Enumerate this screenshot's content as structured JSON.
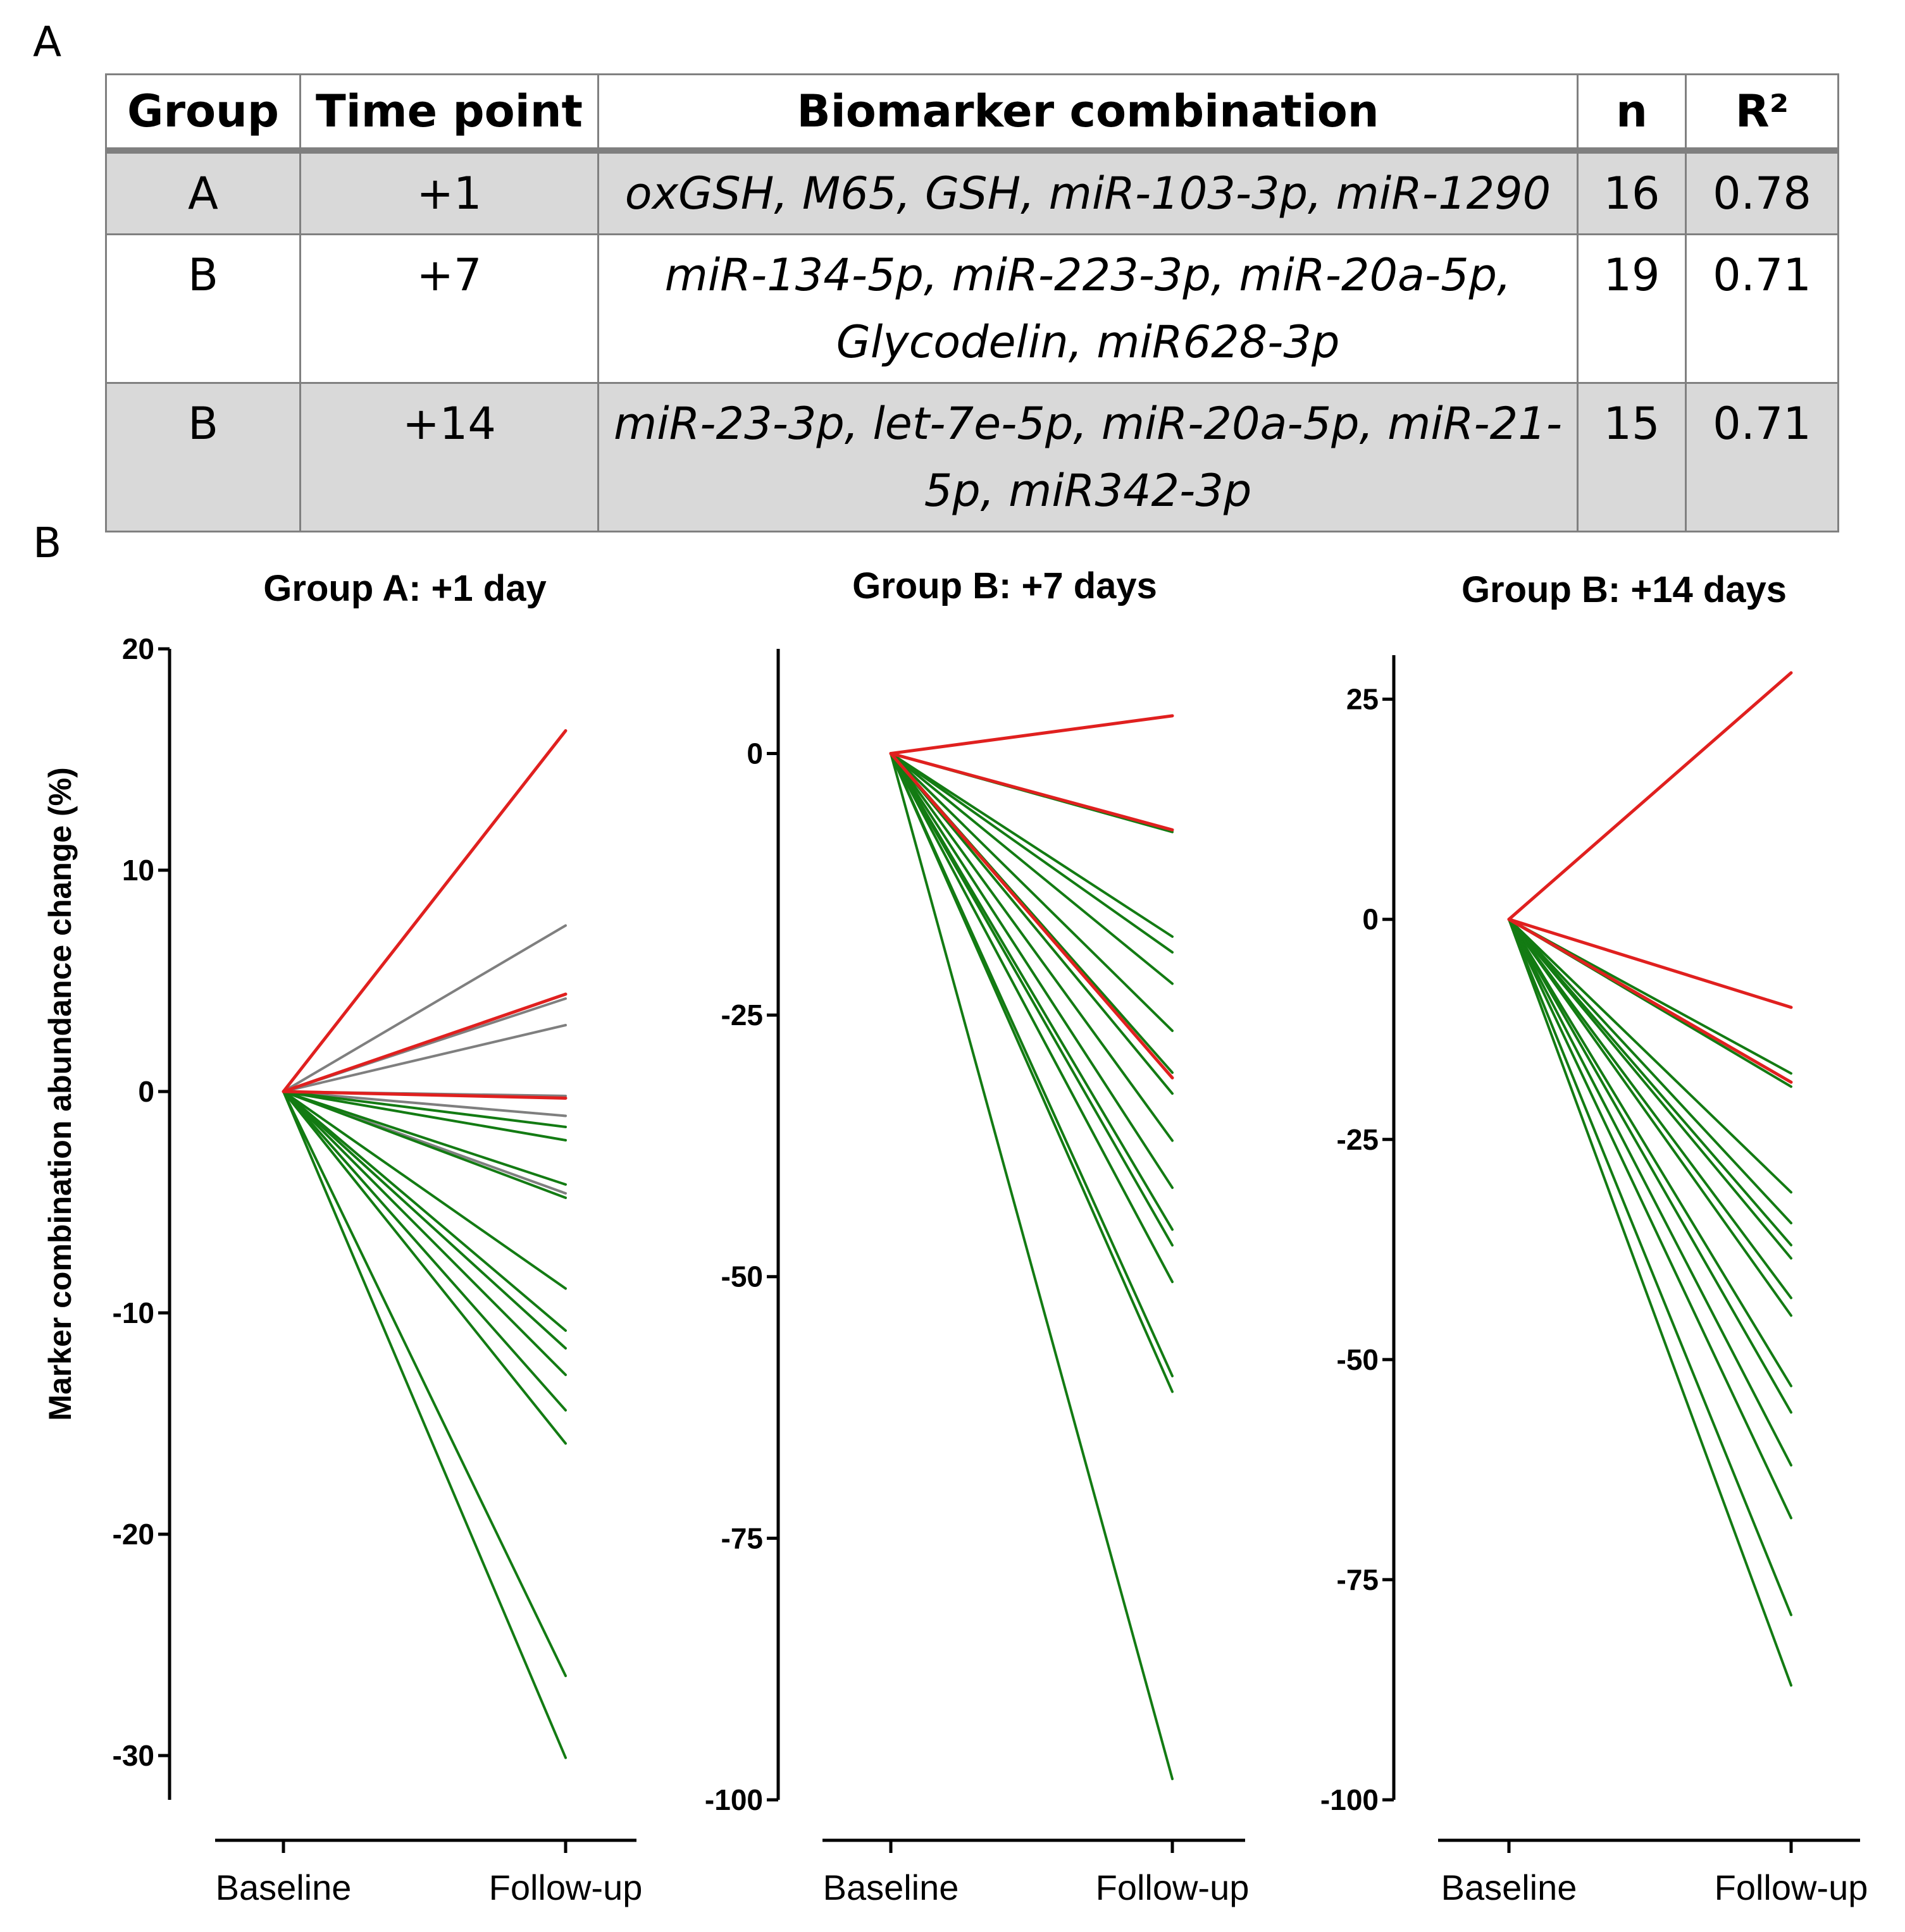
{
  "panel_labels": {
    "a": "A",
    "b": "B"
  },
  "table": {
    "headers": [
      "Group",
      "Time point",
      "Biomarker combination",
      "n",
      "R²"
    ],
    "rows": [
      {
        "group": "A",
        "time_point": "+1",
        "combination": "oxGSH, M65, GSH, miR-103-3p, miR-1290",
        "n": "16",
        "r2": "0.78",
        "shaded": true
      },
      {
        "group": "B",
        "time_point": "+7",
        "combination": "miR-134-5p, miR-223-3p, miR-20a-5p, Glycodelin, miR628-3p",
        "n": "19",
        "r2": "0.71",
        "shaded": false
      },
      {
        "group": "B",
        "time_point": "+14",
        "combination": "miR-23-3p, let-7e-5p, miR-20a-5p, miR-21-5p, miR342-3p",
        "n": "15",
        "r2": "0.71",
        "shaded": true
      }
    ]
  },
  "colors": {
    "red": "#e0201f",
    "green": "#137b13",
    "gray": "#7f7f7f",
    "shade": "#d9d9d9"
  },
  "chart_data": [
    {
      "type": "line",
      "title": "Group A: +1 day",
      "ylabel": "Marker combination abundance change (%)",
      "xlabel": "",
      "categories": [
        "Baseline",
        "Follow-up"
      ],
      "ylim": [
        -32,
        20
      ],
      "yticks": [
        20,
        10,
        0,
        -10,
        -20,
        -30
      ],
      "tick_labels": [
        "20",
        "10",
        "0",
        "-10",
        "-20",
        "-30"
      ],
      "series": [
        {
          "color": "red",
          "values": [
            0,
            16.3
          ]
        },
        {
          "color": "red",
          "values": [
            0,
            4.4
          ]
        },
        {
          "color": "red",
          "values": [
            0,
            -0.3
          ]
        },
        {
          "color": "gray",
          "values": [
            0,
            7.5
          ]
        },
        {
          "color": "gray",
          "values": [
            0,
            4.2
          ]
        },
        {
          "color": "gray",
          "values": [
            0,
            3.0
          ]
        },
        {
          "color": "gray",
          "values": [
            0,
            -0.2
          ]
        },
        {
          "color": "gray",
          "values": [
            0,
            -1.1
          ]
        },
        {
          "color": "gray",
          "values": [
            0,
            -4.6
          ]
        },
        {
          "color": "green",
          "values": [
            0,
            -1.6
          ]
        },
        {
          "color": "green",
          "values": [
            0,
            -2.2
          ]
        },
        {
          "color": "green",
          "values": [
            0,
            -4.2
          ]
        },
        {
          "color": "green",
          "values": [
            0,
            -4.8
          ]
        },
        {
          "color": "green",
          "values": [
            0,
            -8.9
          ]
        },
        {
          "color": "green",
          "values": [
            0,
            -10.8
          ]
        },
        {
          "color": "green",
          "values": [
            0,
            -11.6
          ]
        },
        {
          "color": "green",
          "values": [
            0,
            -12.8
          ]
        },
        {
          "color": "green",
          "values": [
            0,
            -14.4
          ]
        },
        {
          "color": "green",
          "values": [
            0,
            -15.9
          ]
        },
        {
          "color": "green",
          "values": [
            0,
            -26.4
          ]
        },
        {
          "color": "green",
          "values": [
            0,
            -30.1
          ]
        }
      ]
    },
    {
      "type": "line",
      "title": "Group B: +7 days",
      "ylabel": "",
      "xlabel": "",
      "categories": [
        "Baseline",
        "Follow-up"
      ],
      "ylim": [
        -100,
        10
      ],
      "yticks": [
        0,
        -25,
        -50,
        -75,
        -100
      ],
      "tick_labels": [
        "0",
        "-25",
        "-50",
        "-75",
        "-100"
      ],
      "series": [
        {
          "color": "red",
          "values": [
            0,
            3.6
          ]
        },
        {
          "color": "red",
          "values": [
            0,
            -7.3
          ]
        },
        {
          "color": "red",
          "values": [
            0,
            -31.0
          ]
        },
        {
          "color": "green",
          "values": [
            0,
            -7.5
          ]
        },
        {
          "color": "green",
          "values": [
            0,
            -17.5
          ]
        },
        {
          "color": "green",
          "values": [
            0,
            -19.0
          ]
        },
        {
          "color": "green",
          "values": [
            0,
            -22.0
          ]
        },
        {
          "color": "green",
          "values": [
            0,
            -26.5
          ]
        },
        {
          "color": "green",
          "values": [
            0,
            -30.5
          ]
        },
        {
          "color": "green",
          "values": [
            0,
            -32.5
          ]
        },
        {
          "color": "green",
          "values": [
            0,
            -37.0
          ]
        },
        {
          "color": "green",
          "values": [
            0,
            -41.5
          ]
        },
        {
          "color": "green",
          "values": [
            0,
            -45.5
          ]
        },
        {
          "color": "green",
          "values": [
            0,
            -47.0
          ]
        },
        {
          "color": "green",
          "values": [
            0,
            -50.5
          ]
        },
        {
          "color": "green",
          "values": [
            0,
            -59.5
          ]
        },
        {
          "color": "green",
          "values": [
            0,
            -61.0
          ]
        },
        {
          "color": "green",
          "values": [
            0,
            -98.0
          ]
        }
      ]
    },
    {
      "type": "line",
      "title": "Group B: +14 days",
      "ylabel": "",
      "xlabel": "",
      "categories": [
        "Baseline",
        "Follow-up"
      ],
      "ylim": [
        -100,
        30
      ],
      "yticks": [
        25,
        0,
        -25,
        -50,
        -75,
        -100
      ],
      "tick_labels": [
        "25",
        "0",
        "-25",
        "-50",
        "-75",
        "-100"
      ],
      "series": [
        {
          "color": "red",
          "values": [
            0,
            28.0
          ]
        },
        {
          "color": "red",
          "values": [
            0,
            -10.0
          ]
        },
        {
          "color": "red",
          "values": [
            0,
            -18.5
          ]
        },
        {
          "color": "green",
          "values": [
            0,
            -17.5
          ]
        },
        {
          "color": "green",
          "values": [
            0,
            -19.0
          ]
        },
        {
          "color": "green",
          "values": [
            0,
            -31.0
          ]
        },
        {
          "color": "green",
          "values": [
            0,
            -34.5
          ]
        },
        {
          "color": "green",
          "values": [
            0,
            -37.0
          ]
        },
        {
          "color": "green",
          "values": [
            0,
            -38.5
          ]
        },
        {
          "color": "green",
          "values": [
            0,
            -43.0
          ]
        },
        {
          "color": "green",
          "values": [
            0,
            -45.0
          ]
        },
        {
          "color": "green",
          "values": [
            0,
            -53.0
          ]
        },
        {
          "color": "green",
          "values": [
            0,
            -56.0
          ]
        },
        {
          "color": "green",
          "values": [
            0,
            -62.0
          ]
        },
        {
          "color": "green",
          "values": [
            0,
            -68.0
          ]
        },
        {
          "color": "green",
          "values": [
            0,
            -79.0
          ]
        },
        {
          "color": "green",
          "values": [
            0,
            -87.0
          ]
        }
      ]
    }
  ]
}
